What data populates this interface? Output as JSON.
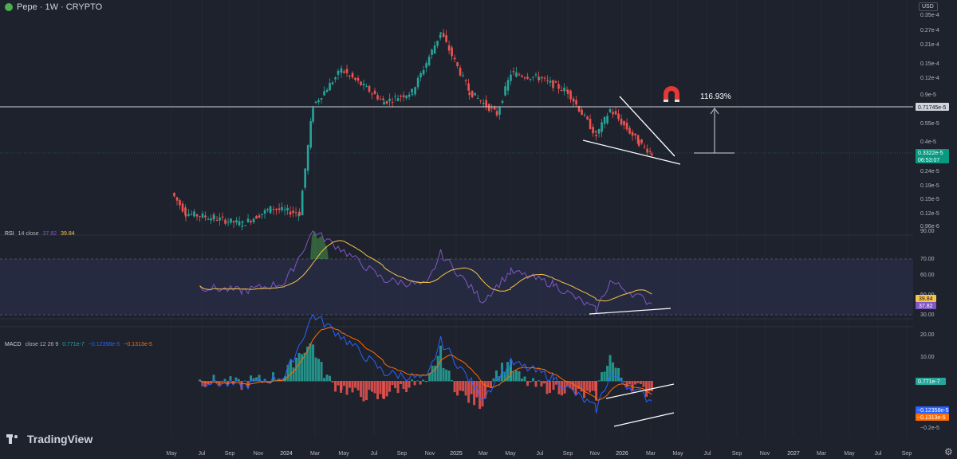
{
  "header": {
    "symbol": "Pepe · 1W · CRYPTO",
    "currency": "USD"
  },
  "price_pane": {
    "axis_labels": [
      "0.35e-4",
      "0.27e-4",
      "0.21e-4",
      "0.15e-4",
      "0.12e-4",
      "0.9e-5",
      "0.55e-5",
      "0.4e-5",
      "0.24e-5",
      "0.19e-5",
      "0.15e-5",
      "0.12e-5",
      "0.96e-6"
    ],
    "resistance_label": "0.71745e-5",
    "last_price": "0.3322e-5",
    "countdown": "06:53:07",
    "measure_label": "116.93%"
  },
  "rsi_pane": {
    "name": "RSI",
    "params": "14 close",
    "value1": "37.82",
    "value2": "39.84",
    "axis_labels": [
      "90.00",
      "70.00",
      "60.00",
      "50.00",
      "40.00",
      "30.00"
    ],
    "badge_upper": "39.84",
    "badge_lower": "37.82",
    "colors": {
      "rsi": "#7e57c2",
      "ma": "#f7c34a",
      "band": "#2a2d47"
    }
  },
  "macd_pane": {
    "name": "MACD",
    "params": "close 12 26 9",
    "hist": "0.771e-7",
    "macd": "−0.12358e-5",
    "signal": "−0.1313e-5",
    "axis_labels": [
      "20.00",
      "10.00",
      "0.00",
      "−0.2e-5"
    ],
    "badges": [
      "0.771e-7",
      "−0.12358e-5",
      "−0.1313e-5"
    ],
    "colors": {
      "macd": "#2962ff",
      "signal": "#ff6d00",
      "hist_up": "#26a69a",
      "hist_down": "#ef5350"
    }
  },
  "time_axis": [
    "May",
    "Jul",
    "Sep",
    "Nov",
    "2024",
    "Mar",
    "May",
    "Jul",
    "Sep",
    "Nov",
    "2025",
    "Mar",
    "May",
    "Jul",
    "Sep",
    "Nov",
    "2026",
    "Mar",
    "May",
    "Jul",
    "Sep",
    "Nov",
    "2027",
    "Mar",
    "May",
    "Jul",
    "Sep"
  ],
  "brand": "TradingView",
  "chart_data": {
    "type": "candlestick",
    "interval": "1W",
    "y_scale": "log",
    "x_range": [
      "2023-04",
      "2027-09"
    ],
    "price_points": [
      {
        "date": "2023-05",
        "price": 1.7e-06
      },
      {
        "date": "2023-06",
        "price": 1.2e-06
      },
      {
        "date": "2023-08",
        "price": 1.1e-06
      },
      {
        "date": "2023-10",
        "price": 1e-06
      },
      {
        "date": "2023-12",
        "price": 1.3e-06
      },
      {
        "date": "2024-02",
        "price": 1.2e-06
      },
      {
        "date": "2024-03",
        "price": 7.5e-06
      },
      {
        "date": "2024-05",
        "price": 1.38e-05
      },
      {
        "date": "2024-08",
        "price": 8e-06
      },
      {
        "date": "2024-10",
        "price": 9.5e-06
      },
      {
        "date": "2024-12",
        "price": 2.6e-05
      },
      {
        "date": "2025-02",
        "price": 9.5e-06
      },
      {
        "date": "2025-04",
        "price": 6.5e-06
      },
      {
        "date": "2025-05",
        "price": 1.3e-05
      },
      {
        "date": "2025-07",
        "price": 1.2e-05
      },
      {
        "date": "2025-09",
        "price": 9.5e-06
      },
      {
        "date": "2025-11",
        "price": 4.5e-06
      },
      {
        "date": "2025-12",
        "price": 7e-06
      },
      {
        "date": "2026-02",
        "price": 4e-06
      },
      {
        "date": "2026-03",
        "price": 3.322e-06
      }
    ],
    "annotations": {
      "horizontal_level": 7.1745e-06,
      "current_level": 3.322e-06,
      "measured_move_pct": 116.93,
      "pattern": "falling wedge"
    },
    "rsi": {
      "length": 14,
      "last": 37.82,
      "ma_last": 39.84,
      "bands": [
        30,
        70
      ],
      "points": [
        {
          "date": "2023-07",
          "value": 50
        },
        {
          "date": "2023-10",
          "value": 47
        },
        {
          "date": "2024-01",
          "value": 53
        },
        {
          "date": "2024-03",
          "value": 90
        },
        {
          "date": "2024-05",
          "value": 77
        },
        {
          "date": "2024-08",
          "value": 55
        },
        {
          "date": "2024-11",
          "value": 51
        },
        {
          "date": "2024-12",
          "value": 74
        },
        {
          "date": "2025-03",
          "value": 40
        },
        {
          "date": "2025-05",
          "value": 61
        },
        {
          "date": "2025-08",
          "value": 52
        },
        {
          "date": "2025-11",
          "value": 33
        },
        {
          "date": "2025-12",
          "value": 54
        },
        {
          "date": "2026-03",
          "value": 37.82
        }
      ]
    },
    "macd": {
      "fast": 12,
      "slow": 26,
      "signal_length": 9,
      "hist_last": 7.71e-08,
      "macd_last": -1.2358e-06,
      "signal_last": -1.313e-06
    }
  }
}
